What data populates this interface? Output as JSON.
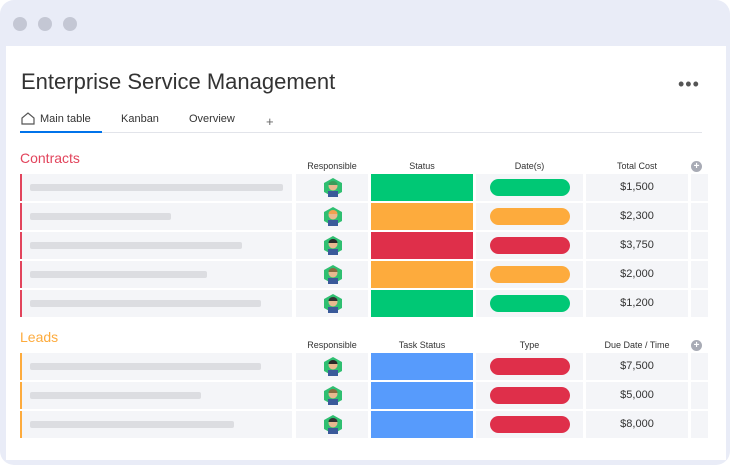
{
  "title": "Enterprise Service Management",
  "tabs": [
    {
      "label": "Main table",
      "icon": "home-icon",
      "active": true
    },
    {
      "label": "Kanban"
    },
    {
      "label": "Overview"
    },
    {
      "label": "+"
    }
  ],
  "colors": {
    "green": "#00c875",
    "orange": "#fdab3d",
    "red": "#df2f4a",
    "blue": "#579bfc",
    "contracts": "#e2445c",
    "leads": "#fdab3d"
  },
  "contracts": {
    "name": "Contracts",
    "columns": [
      "Responsible",
      "Status",
      "Date(s)",
      "Total Cost"
    ],
    "rows": [
      {
        "status": "green",
        "date": "green",
        "cost": "$1,500",
        "bar": 0.93
      },
      {
        "status": "orange",
        "date": "orange",
        "cost": "$2,300",
        "bar": 0.52
      },
      {
        "status": "red",
        "date": "red",
        "cost": "$3,750",
        "bar": 0.78
      },
      {
        "status": "orange",
        "date": "orange",
        "cost": "$2,000",
        "bar": 0.65
      },
      {
        "status": "green",
        "date": "green",
        "cost": "$1,200",
        "bar": 0.85
      }
    ]
  },
  "leads": {
    "name": "Leads",
    "columns": [
      "Responsible",
      "Task Status",
      "Type",
      "Due Date / Time"
    ],
    "rows": [
      {
        "status": "blue",
        "date": "red",
        "cost": "$7,500",
        "bar": 0.85
      },
      {
        "status": "blue",
        "date": "red",
        "cost": "$5,000",
        "bar": 0.63
      },
      {
        "status": "blue",
        "date": "red",
        "cost": "$8,000",
        "bar": 0.75
      }
    ]
  }
}
